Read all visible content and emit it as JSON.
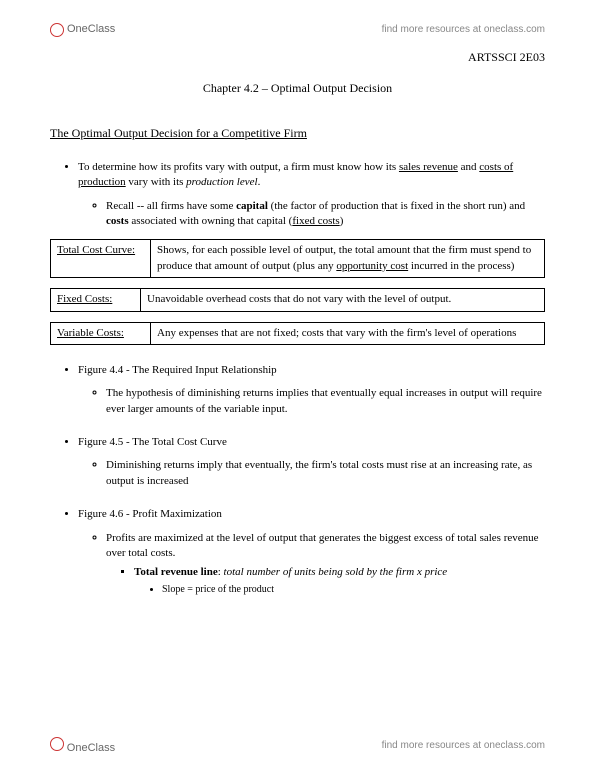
{
  "header": {
    "logo_text": "OneClass",
    "resources_link": "find more resources at oneclass.com"
  },
  "course_code": "ARTSSCI 2E03",
  "chapter_title": "Chapter 4.2 – Optimal Output Decision",
  "section_title": "The Optimal Output Decision for a Competitive Firm",
  "bullet1_pre": "To determine how its profits vary with output, a firm must know how its ",
  "bullet1_sales": "sales revenue",
  "bullet1_mid": " and ",
  "bullet1_costs": "costs of production",
  "bullet1_mid2": " vary with its ",
  "bullet1_prod": "production level",
  "bullet1_post": ".",
  "bullet1_sub_pre": "Recall -- all firms have some ",
  "bullet1_sub_capital": "capital",
  "bullet1_sub_mid": " (the factor of production that is fixed in the short run) and ",
  "bullet1_sub_costs": "costs",
  "bullet1_sub_mid2": " associated with owning that capital (",
  "bullet1_sub_fixed": "fixed costs",
  "bullet1_sub_post": ")",
  "tables": {
    "tcc": {
      "term": "Total Cost Curve:",
      "def_pre": "Shows, for each possible level of output, the total amount that the firm must spend to produce that amount of output (plus any ",
      "def_u": "opportunity cost",
      "def_post": " incurred in the process)"
    },
    "fc": {
      "term": "Fixed Costs:",
      "def": "Unavoidable overhead costs that do not vary with the level of output."
    },
    "vc": {
      "term": "Variable Costs:",
      "def": "Any expenses that are not fixed; costs that vary with the firm's level of operations"
    }
  },
  "fig44": {
    "title": "Figure 4.4 - The Required Input Relationship",
    "sub": "The hypothesis of diminishing returns implies that eventually equal increases in output will require ever larger amounts of the variable input."
  },
  "fig45": {
    "title": "Figure 4.5 - The Total Cost Curve",
    "sub": "Diminishing returns imply that eventually, the firm's total costs must rise at an increasing rate, as output is increased"
  },
  "fig46": {
    "title": "Figure 4.6 - Profit Maximization",
    "sub1": "Profits are maximized at the level of output that generates the biggest excess of total sales revenue over total costs.",
    "sub2_bold": "Total revenue line",
    "sub2_rest": ": ",
    "sub2_italic": "total number of units being sold by the firm x price",
    "sub3": "Slope = price of the product"
  },
  "footer": {
    "logo_text": "OneClass",
    "resources_link": "find more resources at oneclass.com"
  }
}
